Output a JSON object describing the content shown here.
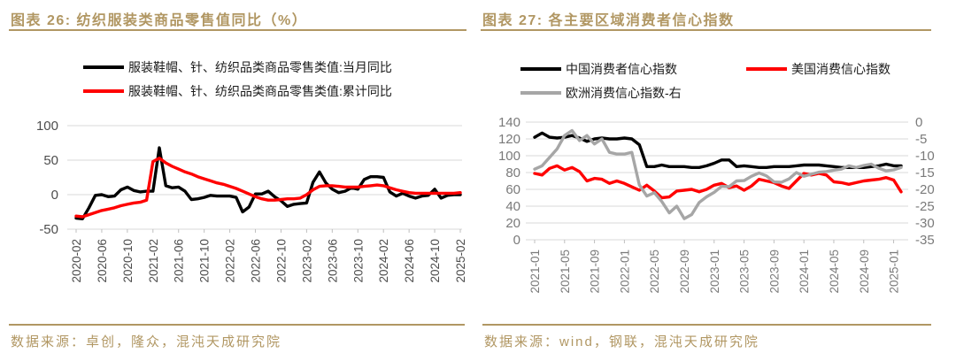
{
  "colors": {
    "accent_gold": "#B19763",
    "grid_line": "#D9D9D9",
    "tick_mark": "#BFBFBF",
    "axis_text_dark": "#4d4d4d",
    "axis_text_light": "#7a7a7a",
    "series_black": "#000000",
    "series_red": "#FF0000",
    "series_gray": "#A6A6A6"
  },
  "left_panel": {
    "title": "图表 26: 纺织服装类商品零售值同比（%）",
    "legend": [
      {
        "label": "服装鞋帽、针、纺织品类商品零售类值:当月同比",
        "color": "#000000"
      },
      {
        "label": "服装鞋帽、针、纺织品类商品零售类值:累计同比",
        "color": "#FF0000"
      }
    ],
    "source": "数据来源：卓创，隆众，混沌天成研究院"
  },
  "right_panel": {
    "title": "图表 27: 各主要区域消费者信心指数",
    "legend": [
      {
        "label": "中国消费者信心指数",
        "color": "#000000"
      },
      {
        "label": "美国消费信心指数",
        "color": "#FF0000"
      },
      {
        "label": "欧洲消费信心指数-右",
        "color": "#A6A6A6"
      }
    ],
    "source": "数据来源：wind，钢联，混沌天成研究院"
  },
  "chart_data": [
    {
      "type": "line",
      "title": "纺织服装类商品零售值同比（%）",
      "x_start": "2020-02",
      "x_interval": "monthly",
      "x_tick_labels": [
        "2020-02",
        "2020-06",
        "2020-10",
        "2021-02",
        "2021-06",
        "2021-10",
        "2022-02",
        "2022-06",
        "2022-10",
        "2023-02",
        "2023-06",
        "2023-10",
        "2024-02",
        "2024-06",
        "2024-10",
        "2025-02"
      ],
      "x_tick_every": 4,
      "grid": true,
      "legend_position": "top",
      "axes": {
        "left": {
          "min": -50,
          "max": 100,
          "ticks": [
            100,
            50,
            0,
            -50
          ]
        }
      },
      "series": [
        {
          "name": "服装鞋帽、针、纺织品类商品零售类值:当月同比",
          "color": "#000000",
          "axis": "left",
          "values": [
            -34,
            -35,
            -19,
            -1,
            0,
            -3,
            -2,
            7,
            11,
            6,
            4,
            5,
            5,
            68,
            13,
            10,
            11,
            5,
            -7,
            -6,
            -4,
            -1,
            -2,
            -2,
            -2,
            -4,
            -25,
            -18,
            1,
            1,
            5,
            -3,
            -9,
            -17,
            -14,
            -13,
            -12,
            18,
            33,
            17,
            8,
            3,
            5,
            10,
            8,
            22,
            26,
            26,
            25,
            4,
            -2,
            2,
            -2,
            -5,
            -2,
            -1,
            8,
            -5,
            -1,
            0,
            0
          ]
        },
        {
          "name": "服装鞋帽、针、纺织品类商品零售类值:累计同比",
          "color": "#FF0000",
          "axis": "left",
          "values": [
            -31,
            -32,
            -29,
            -26,
            -23,
            -21,
            -19,
            -16,
            -14,
            -12,
            -11,
            -8,
            48,
            53,
            46,
            41,
            37,
            33,
            30,
            26,
            23,
            20,
            17,
            15,
            12,
            9,
            5,
            1,
            -3,
            -6,
            -8,
            -8,
            -7,
            -6,
            -6,
            -5,
            0,
            7,
            12,
            13,
            13,
            12,
            11,
            11,
            11,
            12,
            13,
            14,
            13,
            10,
            7,
            5,
            3,
            2,
            2,
            2,
            2,
            2,
            2,
            2,
            3
          ]
        }
      ]
    },
    {
      "type": "line",
      "title": "各主要区域消费者信心指数",
      "x_start": "2021-01",
      "x_interval": "monthly",
      "x_tick_labels": [
        "2021-01",
        "2021-05",
        "2021-09",
        "2022-01",
        "2022-05",
        "2022-09",
        "2023-01",
        "2023-05",
        "2023-09",
        "2024-01",
        "2024-05",
        "2024-09",
        "2025-01"
      ],
      "x_tick_every": 4,
      "grid": true,
      "legend_position": "top",
      "axes": {
        "left": {
          "min": 0,
          "max": 140,
          "ticks": [
            140,
            120,
            100,
            80,
            60,
            40,
            20,
            0
          ]
        },
        "right": {
          "min": -35,
          "max": 0,
          "ticks": [
            0,
            -5,
            -10,
            -15,
            -20,
            -25,
            -30,
            -35
          ]
        }
      },
      "series": [
        {
          "name": "中国消费者信心指数",
          "color": "#000000",
          "axis": "left",
          "values": [
            122,
            127,
            122,
            121,
            122,
            124,
            121,
            117,
            120,
            121,
            120,
            120,
            121,
            120,
            113,
            87,
            87,
            89,
            87,
            87,
            87,
            86,
            86,
            88,
            91,
            95,
            95,
            87,
            88,
            87,
            86,
            86,
            87,
            87,
            87,
            88,
            89,
            89,
            89,
            88,
            87,
            86,
            86,
            86,
            86,
            87,
            88,
            90,
            88,
            88
          ]
        },
        {
          "name": "美国消费信心指数",
          "color": "#FF0000",
          "axis": "left",
          "values": [
            79,
            77,
            85,
            88,
            83,
            86,
            81,
            70,
            73,
            72,
            67,
            70,
            67,
            63,
            59,
            65,
            58,
            50,
            51,
            58,
            59,
            60,
            57,
            60,
            65,
            67,
            62,
            64,
            59,
            64,
            72,
            70,
            68,
            64,
            61,
            70,
            79,
            77,
            79,
            77,
            69,
            68,
            66,
            68,
            70,
            71,
            72,
            74,
            71,
            57
          ]
        },
        {
          "name": "欧洲消费信心指数-右",
          "color": "#A6A6A6",
          "axis": "right",
          "values": [
            -14,
            -13,
            -10.5,
            -8,
            -4,
            -2.5,
            -5.5,
            -4,
            -6.5,
            -5,
            -9,
            -9.5,
            -9.5,
            -9,
            -18.7,
            -22,
            -21,
            -23.6,
            -27,
            -25,
            -28.7,
            -27.5,
            -23.9,
            -22.2,
            -20.9,
            -19.1,
            -19.2,
            -17.5,
            -17.4,
            -16.1,
            -15.1,
            -16,
            -17.8,
            -17.9,
            -16.9,
            -15,
            -16.1,
            -15.5,
            -14.9,
            -14.7,
            -14.3,
            -14,
            -13,
            -13.5,
            -12.9,
            -12.5,
            -13.7,
            -14.5,
            -14.2,
            -13.5
          ]
        }
      ]
    }
  ]
}
